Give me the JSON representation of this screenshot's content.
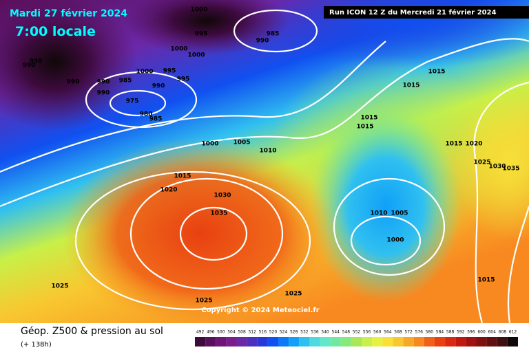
{
  "header": {
    "date": "Mardi 27 février 2024",
    "time": "7:00 locale",
    "run": "Run ICON 12 Z du Mercredi 21 février 2024"
  },
  "isobar_labels": [
    1000,
    995,
    985,
    990,
    1000,
    1000,
    990,
    990,
    990,
    990,
    985,
    995,
    1000,
    995,
    990,
    990,
    975,
    980,
    985,
    1000,
    1005,
    1010,
    1015,
    1020,
    1030,
    1035,
    1025,
    1025,
    1025,
    1015,
    1015,
    1015,
    1015,
    1015,
    1020,
    1025,
    1030,
    1035,
    1010,
    1005,
    1000,
    1015
  ],
  "copyright": "Copyright © 2024 Meteociel.fr",
  "footer": {
    "title": "Géop. Z500 & pression au sol",
    "lead": "(+ 138h)"
  },
  "legend": {
    "values": [
      492,
      496,
      500,
      504,
      508,
      512,
      516,
      520,
      524,
      528,
      532,
      536,
      540,
      544,
      548,
      552,
      556,
      560,
      564,
      568,
      572,
      576,
      580,
      584,
      588,
      592,
      596,
      600,
      604,
      608,
      612
    ],
    "colors": [
      "#3c0a3c",
      "#5a0f5a",
      "#6e1478",
      "#7a1c8c",
      "#6a28a8",
      "#4a30c0",
      "#2838d8",
      "#1050f0",
      "#0a78f8",
      "#10a0f8",
      "#30c0f0",
      "#50d8e0",
      "#60e8c8",
      "#70e8a0",
      "#88e878",
      "#a8e858",
      "#c8f048",
      "#e8f040",
      "#f8e038",
      "#f8c830",
      "#f8a828",
      "#f88820",
      "#f06018",
      "#e84010",
      "#d82810",
      "#c01810",
      "#a01010",
      "#801010",
      "#601010",
      "#401010",
      "#100808"
    ]
  }
}
